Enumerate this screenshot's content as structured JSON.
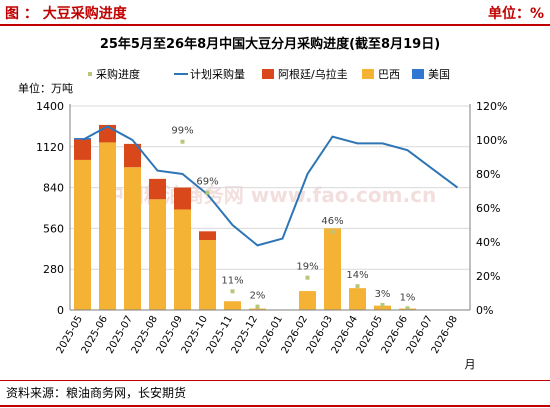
{
  "header": {
    "left_text": "图 ： 大豆采购进度",
    "right_text": "单位：%"
  },
  "source": "资料来源：粮油商务网，长安期货",
  "watermark": "中国粮油商务网 www.fao.com.cn",
  "colors": {
    "accent": "#c00000",
    "brazil": "#f5b335",
    "argentina": "#d9481a",
    "usa": "#2e78d2",
    "plan_line": "#2e75b6",
    "progress_marker": "#b7c77a"
  },
  "chart_data": {
    "type": "bar",
    "title": "25年5月至26年8月中国大豆分月采购进度(截至8月19日)",
    "y_left_unit": "单位：万吨",
    "x_axis_unit": "月",
    "categories": [
      "2025-05",
      "2025-06",
      "2025-07",
      "2025-08",
      "2025-09",
      "2025-10",
      "2025-11",
      "2025-12",
      "2026-01",
      "2026-02",
      "2026-03",
      "2026-04",
      "2026-05",
      "2026-06",
      "2026-07",
      "2026-08"
    ],
    "y_left_range": [
      0,
      1400
    ],
    "y_left_ticks": [
      "0",
      "280",
      "560",
      "840",
      "1120",
      "1400"
    ],
    "y_right_range": [
      0,
      120
    ],
    "y_right_ticks": [
      "0%",
      "20%",
      "40%",
      "60%",
      "80%",
      "100%",
      "120%"
    ],
    "legend": [
      "采购进度",
      "计划采购量",
      "阿根廷/乌拉圭",
      "巴西",
      "美国"
    ],
    "series": [
      {
        "name": "巴西",
        "stack": true,
        "values": [
          1030,
          1150,
          980,
          760,
          690,
          480,
          60,
          10,
          0,
          130,
          560,
          150,
          30,
          10,
          0,
          0
        ]
      },
      {
        "name": "阿根廷/乌拉圭",
        "stack": true,
        "values": [
          140,
          120,
          160,
          140,
          150,
          60,
          0,
          0,
          0,
          0,
          0,
          0,
          0,
          0,
          0,
          0
        ]
      },
      {
        "name": "美国",
        "stack": true,
        "values": [
          10,
          0,
          0,
          0,
          0,
          0,
          0,
          0,
          0,
          0,
          0,
          0,
          0,
          0,
          0,
          0
        ]
      },
      {
        "name": "计划采购量",
        "axis": "right",
        "values": [
          100,
          108,
          100,
          82,
          80,
          68,
          50,
          38,
          42,
          80,
          102,
          98,
          98,
          94,
          83,
          72
        ]
      },
      {
        "name": "采购进度",
        "axis": "right",
        "labels": [
          null,
          null,
          null,
          null,
          "99%",
          "69%",
          "11%",
          "2%",
          null,
          "19%",
          "46%",
          "14%",
          "3%",
          "1%",
          null,
          null
        ],
        "values": [
          null,
          null,
          null,
          null,
          99,
          69,
          11,
          2,
          null,
          19,
          46,
          14,
          3,
          1,
          null,
          null
        ]
      }
    ]
  }
}
